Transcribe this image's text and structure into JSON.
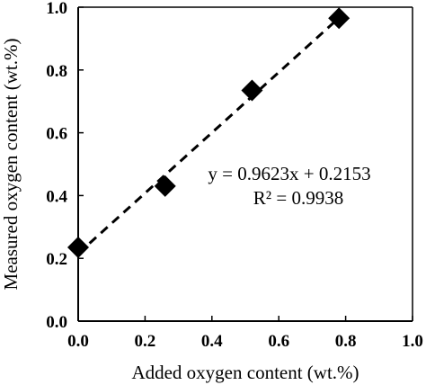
{
  "chart_data": {
    "type": "scatter",
    "title": "",
    "xlabel": "Added oxygen content (wt.%)",
    "ylabel": "Measured oxygen content (wt.%)",
    "xlim": [
      0.0,
      1.0
    ],
    "ylim": [
      0.0,
      1.0
    ],
    "x_ticks": [
      "0.0",
      "0.2",
      "0.4",
      "0.6",
      "0.8",
      "1.0"
    ],
    "y_ticks": [
      "0.0",
      "0.2",
      "0.4",
      "0.6",
      "0.8",
      "1.0"
    ],
    "grid": false,
    "legend": "none",
    "series": [
      {
        "marker": "diamond",
        "color": "#000000",
        "x": [
          0.0,
          0.26,
          0.52,
          0.78
        ],
        "y": [
          0.235,
          0.43,
          0.735,
          0.965
        ]
      }
    ],
    "trendline": {
      "style": "dashed",
      "color": "#000000",
      "slope": 0.9623,
      "intercept": 0.2153,
      "x_range": [
        0.0,
        0.78
      ]
    },
    "annotations": {
      "equation": "y = 0.9623x + 0.2153",
      "r_squared": "R² = 0.9938"
    }
  }
}
